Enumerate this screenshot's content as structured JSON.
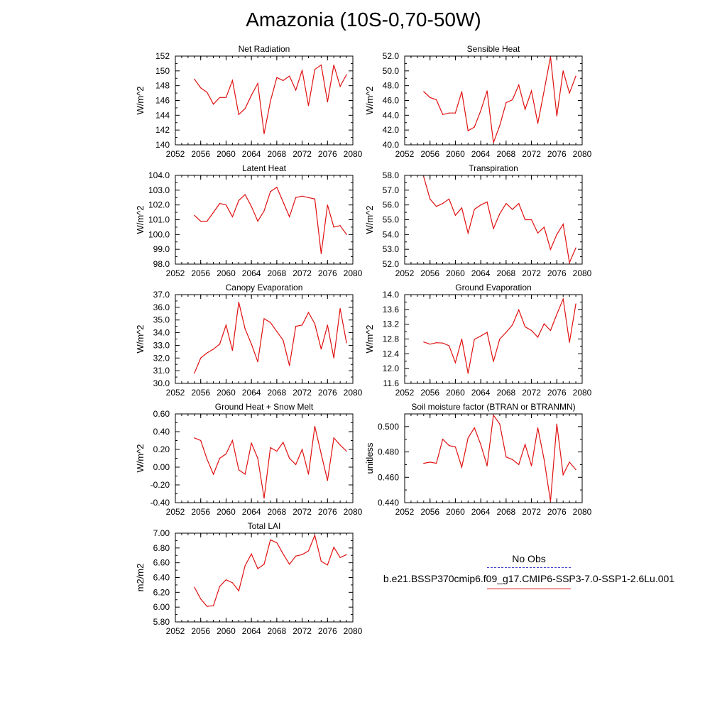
{
  "title": "Amazonia (10S-0,70-50W)",
  "legend": {
    "obs_label": "No Obs",
    "case_label": "b.e21.BSSP370cmip6.f09_g17.CMIP6-SSP3-7.0-SSP1-2.6Lu.001",
    "case_color": "#e01010",
    "obs_color": "#3c3cc8"
  },
  "chart_data": [
    {
      "type": "line",
      "title": "Net Radiation",
      "ylabel": "W/m^2",
      "xlim": [
        2052,
        2080
      ],
      "ylim": [
        140,
        152
      ],
      "xticks": [
        "2052",
        "2056",
        "2060",
        "2064",
        "2068",
        "2072",
        "2076",
        "2080"
      ],
      "yticks": [
        "140",
        "142",
        "144",
        "146",
        "148",
        "150",
        "152"
      ],
      "x": [
        2055,
        2056,
        2057,
        2058,
        2059,
        2060,
        2061,
        2062,
        2063,
        2064,
        2065,
        2066,
        2067,
        2068,
        2069,
        2070,
        2071,
        2072,
        2073,
        2074,
        2075,
        2076,
        2077,
        2078,
        2079
      ],
      "series": [
        {
          "values": [
            148.9,
            147.7,
            147.1,
            145.5,
            146.4,
            146.4,
            148.7,
            144.1,
            144.9,
            146.7,
            148.3,
            141.5,
            145.9,
            149.1,
            148.7,
            149.3,
            147.4,
            150.1,
            145.3,
            150.2,
            150.8,
            145.8,
            150.8,
            147.9,
            149.5
          ]
        }
      ]
    },
    {
      "type": "line",
      "title": "Sensible Heat",
      "ylabel": "W/m^2",
      "xlim": [
        2052,
        2080
      ],
      "ylim": [
        40.0,
        52.0
      ],
      "xticks": [
        "2052",
        "2056",
        "2060",
        "2064",
        "2068",
        "2072",
        "2076",
        "2080"
      ],
      "yticks": [
        "40.0",
        "42.0",
        "44.0",
        "46.0",
        "48.0",
        "50.0",
        "52.0"
      ],
      "x": [
        2055,
        2056,
        2057,
        2058,
        2059,
        2060,
        2061,
        2062,
        2063,
        2064,
        2065,
        2066,
        2067,
        2068,
        2069,
        2070,
        2071,
        2072,
        2073,
        2074,
        2075,
        2076,
        2077,
        2078,
        2079
      ],
      "series": [
        {
          "values": [
            47.2,
            46.4,
            46.1,
            44.1,
            44.3,
            44.3,
            47.2,
            41.9,
            42.4,
            44.6,
            47.3,
            40.3,
            42.6,
            45.7,
            46.1,
            48.1,
            44.8,
            47.3,
            42.9,
            47.3,
            51.9,
            43.9,
            50.0,
            47.0,
            49.3
          ]
        }
      ]
    },
    {
      "type": "line",
      "title": "Latent Heat",
      "ylabel": "W/m^2",
      "xlim": [
        2052,
        2080
      ],
      "ylim": [
        98.0,
        104.0
      ],
      "xticks": [
        "2052",
        "2056",
        "2060",
        "2064",
        "2068",
        "2072",
        "2076",
        "2080"
      ],
      "yticks": [
        "98.0",
        "99.0",
        "100.0",
        "101.0",
        "102.0",
        "103.0",
        "104.0"
      ],
      "x": [
        2055,
        2056,
        2057,
        2058,
        2059,
        2060,
        2061,
        2062,
        2063,
        2064,
        2065,
        2066,
        2067,
        2068,
        2069,
        2070,
        2071,
        2072,
        2073,
        2074,
        2075,
        2076,
        2077,
        2078,
        2079
      ],
      "series": [
        {
          "values": [
            101.3,
            100.9,
            100.9,
            101.5,
            102.1,
            102.0,
            101.2,
            102.3,
            102.7,
            101.9,
            100.9,
            101.6,
            102.9,
            103.2,
            102.2,
            101.2,
            102.5,
            102.6,
            102.5,
            102.4,
            98.7,
            102.0,
            100.5,
            100.6,
            100.0
          ]
        }
      ]
    },
    {
      "type": "line",
      "title": "Transpiration",
      "ylabel": "W/m^2",
      "xlim": [
        2052,
        2080
      ],
      "ylim": [
        52.0,
        58.0
      ],
      "xticks": [
        "2052",
        "2056",
        "2060",
        "2064",
        "2068",
        "2072",
        "2076",
        "2080"
      ],
      "yticks": [
        "52.0",
        "53.0",
        "54.0",
        "55.0",
        "56.0",
        "57.0",
        "58.0"
      ],
      "x": [
        2055,
        2056,
        2057,
        2058,
        2059,
        2060,
        2061,
        2062,
        2063,
        2064,
        2065,
        2066,
        2067,
        2068,
        2069,
        2070,
        2071,
        2072,
        2073,
        2074,
        2075,
        2076,
        2077,
        2078,
        2079
      ],
      "series": [
        {
          "values": [
            57.9,
            56.4,
            55.9,
            56.1,
            56.4,
            55.3,
            55.8,
            54.1,
            55.7,
            56.0,
            56.2,
            54.4,
            55.4,
            56.1,
            55.7,
            56.1,
            55.0,
            55.0,
            54.1,
            54.5,
            53.0,
            54.0,
            54.7,
            52.1,
            53.1
          ]
        }
      ]
    },
    {
      "type": "line",
      "title": "Canopy Evaporation",
      "ylabel": "W/m^2",
      "xlim": [
        2052,
        2080
      ],
      "ylim": [
        30.0,
        37.0
      ],
      "xticks": [
        "2052",
        "2056",
        "2060",
        "2064",
        "2068",
        "2072",
        "2076",
        "2080"
      ],
      "yticks": [
        "30.0",
        "31.0",
        "32.0",
        "33.0",
        "34.0",
        "35.0",
        "36.0",
        "37.0"
      ],
      "x": [
        2055,
        2056,
        2057,
        2058,
        2059,
        2060,
        2061,
        2062,
        2063,
        2064,
        2065,
        2066,
        2067,
        2068,
        2069,
        2070,
        2071,
        2072,
        2073,
        2074,
        2075,
        2076,
        2077,
        2078,
        2079
      ],
      "series": [
        {
          "values": [
            30.8,
            32.0,
            32.4,
            32.7,
            33.1,
            34.6,
            32.6,
            36.4,
            34.3,
            33.1,
            31.7,
            35.1,
            34.8,
            34.1,
            33.4,
            31.4,
            34.5,
            34.6,
            35.6,
            34.7,
            32.7,
            34.6,
            32.0,
            35.9,
            33.2
          ]
        }
      ]
    },
    {
      "type": "line",
      "title": "Ground Evaporation",
      "ylabel": "W/m^2",
      "xlim": [
        2052,
        2080
      ],
      "ylim": [
        11.6,
        14.0
      ],
      "xticks": [
        "2052",
        "2056",
        "2060",
        "2064",
        "2068",
        "2072",
        "2076",
        "2080"
      ],
      "yticks": [
        "11.6",
        "12.0",
        "12.4",
        "12.8",
        "13.2",
        "13.6",
        "14.0"
      ],
      "x": [
        2055,
        2056,
        2057,
        2058,
        2059,
        2060,
        2061,
        2062,
        2063,
        2064,
        2065,
        2066,
        2067,
        2068,
        2069,
        2070,
        2071,
        2072,
        2073,
        2074,
        2075,
        2076,
        2077,
        2078,
        2079
      ],
      "series": [
        {
          "values": [
            12.72,
            12.66,
            12.7,
            12.69,
            12.62,
            12.16,
            12.8,
            11.87,
            12.79,
            12.88,
            12.98,
            12.19,
            12.8,
            12.98,
            13.18,
            13.59,
            13.13,
            13.03,
            12.85,
            13.21,
            13.03,
            13.47,
            13.88,
            12.71,
            13.75
          ]
        }
      ]
    },
    {
      "type": "line",
      "title": "Ground Heat + Snow Melt",
      "ylabel": "W/m^2",
      "xlim": [
        2052,
        2080
      ],
      "ylim": [
        -0.4,
        0.6
      ],
      "xticks": [
        "2052",
        "2056",
        "2060",
        "2064",
        "2068",
        "2072",
        "2076",
        "2080"
      ],
      "yticks": [
        "-0.40",
        "-0.20",
        "0.00",
        "0.20",
        "0.40",
        "0.60"
      ],
      "x": [
        2055,
        2056,
        2057,
        2058,
        2059,
        2060,
        2061,
        2062,
        2063,
        2064,
        2065,
        2066,
        2067,
        2068,
        2069,
        2070,
        2071,
        2072,
        2073,
        2074,
        2075,
        2076,
        2077,
        2078,
        2079
      ],
      "series": [
        {
          "values": [
            0.33,
            0.3,
            0.09,
            -0.08,
            0.1,
            0.15,
            0.3,
            -0.03,
            -0.08,
            0.27,
            0.1,
            -0.35,
            0.22,
            0.18,
            0.28,
            0.1,
            0.03,
            0.2,
            -0.08,
            0.46,
            0.15,
            -0.15,
            0.33,
            0.25,
            0.18
          ]
        }
      ]
    },
    {
      "type": "line",
      "title": "Soil moisture factor (BTRAN or BTRANMN)",
      "ylabel": "unitless",
      "xlim": [
        2052,
        2080
      ],
      "ylim": [
        0.44,
        0.51
      ],
      "xticks": [
        "2052",
        "2056",
        "2060",
        "2064",
        "2068",
        "2072",
        "2076",
        "2080"
      ],
      "yticks": [
        "0.440",
        "0.460",
        "0.480",
        "0.500"
      ],
      "x": [
        2055,
        2056,
        2057,
        2058,
        2059,
        2060,
        2061,
        2062,
        2063,
        2064,
        2065,
        2066,
        2067,
        2068,
        2069,
        2070,
        2071,
        2072,
        2073,
        2074,
        2075,
        2076,
        2077,
        2078,
        2079
      ],
      "series": [
        {
          "values": [
            0.471,
            0.472,
            0.471,
            0.49,
            0.485,
            0.484,
            0.468,
            0.491,
            0.499,
            0.486,
            0.469,
            0.509,
            0.502,
            0.476,
            0.474,
            0.47,
            0.486,
            0.469,
            0.499,
            0.474,
            0.441,
            0.502,
            0.462,
            0.472,
            0.466
          ]
        }
      ]
    },
    {
      "type": "line",
      "title": "Total LAI",
      "ylabel": "m2/m2",
      "xlim": [
        2052,
        2080
      ],
      "ylim": [
        5.8,
        7.0
      ],
      "xticks": [
        "2052",
        "2056",
        "2060",
        "2064",
        "2068",
        "2072",
        "2076",
        "2080"
      ],
      "yticks": [
        "5.80",
        "6.00",
        "6.20",
        "6.40",
        "6.60",
        "6.80",
        "7.00"
      ],
      "x": [
        2055,
        2056,
        2057,
        2058,
        2059,
        2060,
        2061,
        2062,
        2063,
        2064,
        2065,
        2066,
        2067,
        2068,
        2069,
        2070,
        2071,
        2072,
        2073,
        2074,
        2075,
        2076,
        2077,
        2078,
        2079
      ],
      "series": [
        {
          "values": [
            6.27,
            6.11,
            6.01,
            6.02,
            6.28,
            6.37,
            6.33,
            6.22,
            6.56,
            6.72,
            6.52,
            6.58,
            6.91,
            6.87,
            6.72,
            6.58,
            6.69,
            6.71,
            6.76,
            6.97,
            6.62,
            6.57,
            6.81,
            6.67,
            6.71
          ]
        }
      ]
    }
  ]
}
